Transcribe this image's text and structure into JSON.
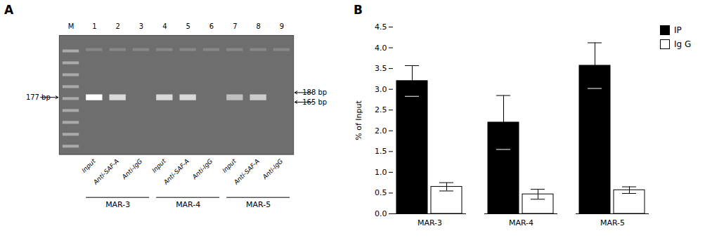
{
  "chart_data": [
    {
      "type": "gel",
      "title": "A",
      "color": "#6e6e6e",
      "categories": [
        "M",
        "1",
        "2",
        "3",
        "4",
        "5",
        "6",
        "7",
        "8",
        "9"
      ],
      "group_labels": [
        "MAR-3",
        "MAR-4",
        "MAR-5"
      ],
      "sublane_labels": [
        "Input",
        "Anti-SAF-A",
        "Anti-IgG"
      ],
      "annotations": [
        "177 bp",
        "188 bp",
        "165 bp"
      ]
    },
    {
      "type": "bar",
      "title": "B",
      "categories": [
        "MAR-3",
        "MAR-4",
        "MAR-5"
      ],
      "series": [
        {
          "name": "IP",
          "color": "#000000",
          "values": [
            3.2,
            2.2,
            3.57
          ],
          "errors": [
            0.37,
            0.65,
            0.55
          ]
        },
        {
          "name": "Ig G",
          "color": "#ffffff",
          "values": [
            0.65,
            0.47,
            0.57
          ],
          "errors": [
            0.1,
            0.12,
            0.08
          ]
        }
      ],
      "ylabel": "% of Input",
      "ylim": [
        0,
        4.5
      ],
      "yticks": [
        {
          "value": 0,
          "label": "0.0"
        },
        0.5,
        {
          "value": 1,
          "label": "1.0"
        },
        1.5,
        {
          "value": 2,
          "label": "2.0"
        },
        2.5,
        {
          "value": 3,
          "label": "3.0"
        },
        3.5,
        {
          "value": 4,
          "label": "4.0"
        },
        4.5
      ],
      "legend": "upper right"
    }
  ]
}
